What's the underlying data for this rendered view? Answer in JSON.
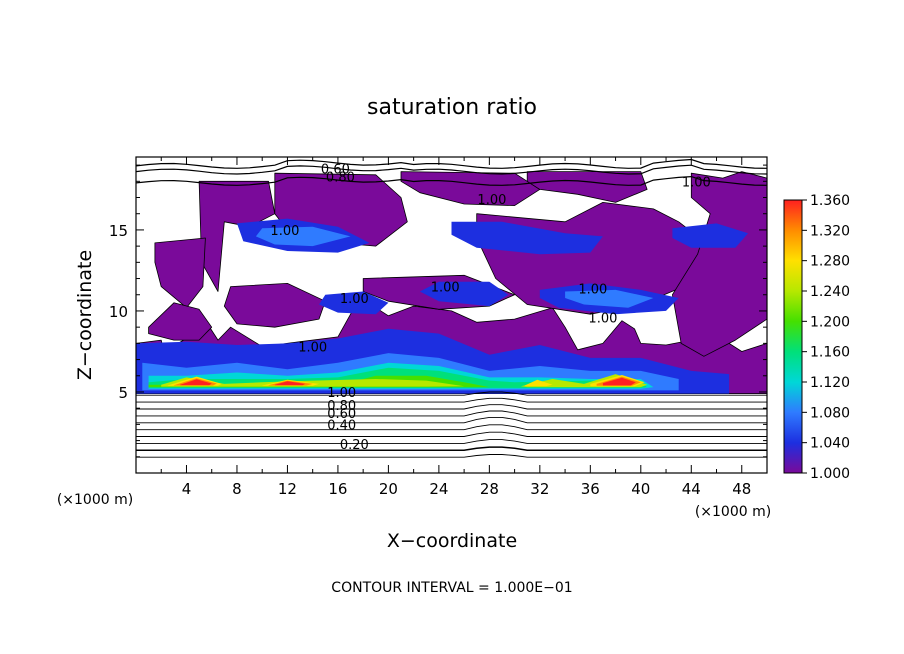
{
  "chart_data": {
    "type": "heatmap",
    "title": "saturation ratio",
    "xlabel": "X−coordinate",
    "ylabel": "Z−coordinate",
    "x_unit_left": "(×1000 m)",
    "x_unit_right": "(×1000 m)",
    "xlim": [
      0,
      50
    ],
    "ylim": [
      0,
      19.5
    ],
    "xticks": [
      4,
      8,
      12,
      16,
      20,
      24,
      28,
      32,
      36,
      40,
      44,
      48
    ],
    "yticks": [
      5,
      10,
      15
    ],
    "footer": "CONTOUR INTERVAL = 1.000E−01",
    "colorbar": {
      "min": 1.0,
      "max": 1.36,
      "ticks": [
        "1.360",
        "1.320",
        "1.280",
        "1.240",
        "1.200",
        "1.160",
        "1.120",
        "1.080",
        "1.040",
        "1.000"
      ],
      "stops": [
        {
          "v": 1.0,
          "color": "#7a0a9a"
        },
        {
          "v": 1.04,
          "color": "#1d2fe0"
        },
        {
          "v": 1.08,
          "color": "#2f7bff"
        },
        {
          "v": 1.12,
          "color": "#00d7d7"
        },
        {
          "v": 1.16,
          "color": "#00e07a"
        },
        {
          "v": 1.2,
          "color": "#45e000"
        },
        {
          "v": 1.24,
          "color": "#b7e800"
        },
        {
          "v": 1.28,
          "color": "#ffe000"
        },
        {
          "v": 1.32,
          "color": "#ff8c00"
        },
        {
          "v": 1.36,
          "color": "#ff2020"
        }
      ]
    },
    "contour_levels_below": [
      0.1,
      0.2,
      0.3,
      0.4,
      0.5,
      0.6,
      0.7,
      0.8,
      0.9,
      1.0
    ],
    "contour_labels": [
      {
        "text": "0.20",
        "x": 17.3,
        "z": 1.8
      },
      {
        "text": "0.40",
        "x": 16.3,
        "z": 3.0
      },
      {
        "text": "0.60",
        "x": 16.3,
        "z": 3.7
      },
      {
        "text": "0.80",
        "x": 16.3,
        "z": 4.2
      },
      {
        "text": "1.00",
        "x": 16.3,
        "z": 5.0
      },
      {
        "text": "0.60",
        "x": 15.8,
        "z": 18.8
      },
      {
        "text": "0.80",
        "x": 16.2,
        "z": 18.3
      },
      {
        "text": "1.00",
        "x": 11.8,
        "z": 15.0
      },
      {
        "text": "1.00",
        "x": 28.2,
        "z": 16.9
      },
      {
        "text": "1.00",
        "x": 24.5,
        "z": 11.5
      },
      {
        "text": "1.00",
        "x": 17.3,
        "z": 10.8
      },
      {
        "text": "1.00",
        "x": 36.2,
        "z": 11.4
      },
      {
        "text": "1.00",
        "x": 37.0,
        "z": 9.6
      },
      {
        "text": "1.00",
        "x": 14.0,
        "z": 7.8
      },
      {
        "text": "1.00",
        "x": 44.4,
        "z": 18.0
      }
    ],
    "regions": [
      {
        "v": 1.0,
        "x": [
          0,
          2,
          2.2,
          4,
          5,
          6.5,
          7.5,
          10,
          13,
          16,
          17.5,
          19,
          20,
          22,
          25,
          27,
          30,
          33,
          34,
          35,
          37,
          38.5,
          39.5,
          40,
          42,
          46,
          48,
          50,
          50,
          48,
          46,
          44,
          42,
          40,
          38,
          36,
          34,
          31,
          28,
          25,
          22,
          19,
          16,
          13,
          10,
          7,
          4,
          1,
          0
        ],
        "z": [
          8,
          8.2,
          7.5,
          8.3,
          10,
          8.2,
          9,
          7.8,
          8.1,
          8.4,
          10.5,
          10.2,
          9.7,
          10.3,
          10,
          9.3,
          9.5,
          10.2,
          9,
          7.6,
          8,
          9.4,
          8.9,
          8,
          7.9,
          8.5,
          7.5,
          8,
          4.9,
          4.9,
          4.9,
          4.9,
          4.9,
          4.9,
          4.9,
          4.9,
          4.9,
          4.9,
          4.9,
          4.9,
          4.9,
          4.9,
          4.9,
          4.9,
          4.9,
          4.9,
          4.9,
          4.9,
          4.9
        ]
      },
      {
        "v": 1.0,
        "x": [
          5,
          10.5,
          11,
          9,
          7,
          6.5,
          5.2
        ],
        "z": [
          18,
          18,
          16,
          15.2,
          15.5,
          11.2,
          13
        ]
      },
      {
        "v": 1.0,
        "x": [
          1.5,
          5.5,
          5.3,
          4,
          2,
          1.5
        ],
        "z": [
          14.2,
          14.5,
          11.5,
          10.2,
          11.5,
          13
        ]
      },
      {
        "v": 1.0,
        "x": [
          11,
          19,
          21,
          21.5,
          19,
          16,
          13,
          11
        ],
        "z": [
          18.5,
          18.4,
          17,
          15.5,
          14,
          14.2,
          14,
          16
        ]
      },
      {
        "v": 1.0,
        "x": [
          21,
          30,
          32,
          30,
          26,
          22.5,
          21
        ],
        "z": [
          18.6,
          18.5,
          17.5,
          16.5,
          16.6,
          17.3,
          18
        ]
      },
      {
        "v": 1.0,
        "x": [
          31,
          40,
          40.5,
          38,
          35,
          32,
          31
        ],
        "z": [
          18.6,
          18.6,
          17.5,
          16.7,
          17.2,
          17.5,
          18
        ]
      },
      {
        "v": 1.0,
        "x": [
          27,
          34,
          37,
          41,
          43,
          45,
          46,
          44,
          40,
          36,
          31,
          28.5,
          27
        ],
        "z": [
          16,
          15.5,
          16.7,
          16.3,
          15.5,
          14.3,
          12.2,
          11.7,
          10.4,
          9.8,
          10.4,
          12,
          14.5
        ]
      },
      {
        "v": 1.0,
        "x": [
          44,
          46.5,
          48,
          50,
          50,
          47.5,
          45,
          43.2,
          42.5,
          44.5,
          45.5,
          44
        ],
        "z": [
          18.5,
          18.2,
          18.6,
          18.2,
          9.5,
          8.2,
          7.2,
          8,
          11,
          13.5,
          16,
          17
        ]
      },
      {
        "v": 1.0,
        "x": [
          7.5,
          12,
          15,
          14.5,
          11,
          8,
          7
        ],
        "z": [
          11.5,
          11.7,
          10.6,
          9.5,
          9,
          9.2,
          10.3
        ]
      },
      {
        "v": 1.0,
        "x": [
          18,
          26,
          30,
          28,
          24,
          20,
          18
        ],
        "z": [
          12,
          12.2,
          11,
          10.3,
          10.1,
          10.6,
          11.2
        ]
      },
      {
        "v": 1.0,
        "x": [
          1,
          3,
          5,
          6,
          5,
          3,
          1
        ],
        "z": [
          9,
          10.5,
          10.1,
          9,
          8.2,
          8.2,
          8.6
        ]
      },
      {
        "v": 1.04,
        "x": [
          0,
          4,
          8,
          12,
          16,
          20,
          24,
          28,
          32,
          36,
          40,
          44,
          47,
          47,
          44,
          40,
          36,
          32,
          28,
          24,
          20,
          16,
          12,
          8,
          4,
          0
        ],
        "z": [
          8,
          8.1,
          7.9,
          8,
          8.3,
          8.9,
          8.6,
          7.3,
          7.9,
          7.1,
          7.1,
          6.3,
          6.1,
          4.9,
          4.9,
          4.9,
          4.9,
          4.9,
          4.9,
          4.9,
          4.9,
          4.9,
          4.9,
          4.9,
          4.9,
          4.9
        ]
      },
      {
        "v": 1.04,
        "x": [
          8,
          12,
          16,
          18.5,
          16,
          12,
          8.5
        ],
        "z": [
          15.4,
          15.7,
          15.2,
          14.2,
          13.6,
          13.7,
          14.3
        ]
      },
      {
        "v": 1.04,
        "x": [
          25,
          29,
          34,
          37,
          36,
          32,
          27,
          25
        ],
        "z": [
          15.5,
          15.5,
          14.8,
          14.6,
          13.6,
          13.5,
          13.9,
          14.7
        ]
      },
      {
        "v": 1.04,
        "x": [
          32,
          36,
          40,
          43,
          42,
          38,
          33.5,
          32
        ],
        "z": [
          11.3,
          11.7,
          11.3,
          10.8,
          10,
          9.8,
          10.2,
          10.8
        ]
      },
      {
        "v": 1.04,
        "x": [
          24,
          28,
          29.5,
          28,
          24,
          22.5
        ],
        "z": [
          11.8,
          11.8,
          11,
          10.3,
          10.6,
          11.2
        ]
      },
      {
        "v": 1.04,
        "x": [
          42.5,
          46,
          48.5,
          47.5,
          44,
          42.5
        ],
        "z": [
          15.1,
          15.4,
          14.8,
          13.9,
          13.9,
          14.5
        ]
      },
      {
        "v": 1.04,
        "x": [
          15,
          18,
          20,
          19,
          16,
          14.5
        ],
        "z": [
          11,
          11.2,
          10.5,
          9.8,
          9.9,
          10.4
        ]
      },
      {
        "v": 1.08,
        "x": [
          0.5,
          4,
          8,
          12,
          16,
          20,
          24,
          28,
          32,
          36,
          40,
          43,
          43,
          40,
          36,
          32,
          28,
          24,
          20,
          16,
          12,
          8,
          4,
          0.5
        ],
        "z": [
          6.8,
          6.5,
          6.8,
          6.4,
          6.8,
          7.4,
          7.1,
          6.3,
          6.6,
          6.3,
          6.3,
          5.8,
          5.1,
          5.1,
          5.1,
          5.1,
          5.1,
          5.1,
          5.1,
          5.1,
          5.1,
          5.1,
          5.1,
          5.1
        ]
      },
      {
        "v": 1.08,
        "x": [
          10,
          14,
          17,
          14,
          11,
          9.5
        ],
        "z": [
          15.1,
          15.2,
          14.6,
          14.0,
          14.1,
          14.6
        ]
      },
      {
        "v": 1.08,
        "x": [
          34,
          38,
          41,
          39,
          35.5,
          34
        ],
        "z": [
          11.2,
          11.3,
          10.8,
          10.2,
          10.4,
          10.8
        ]
      },
      {
        "v": 1.12,
        "x": [
          1,
          4,
          8,
          12,
          16,
          20,
          24,
          28,
          32,
          36,
          40,
          41,
          40,
          36,
          32,
          28,
          24,
          20,
          16,
          12,
          8,
          4,
          1
        ],
        "z": [
          6.0,
          6.0,
          6.2,
          6.0,
          6.2,
          6.8,
          6.6,
          5.9,
          5.9,
          5.8,
          5.8,
          5.3,
          5.2,
          5.2,
          5.2,
          5.2,
          5.2,
          5.2,
          5.2,
          5.2,
          5.2,
          5.2,
          5.2
        ]
      },
      {
        "v": 1.16,
        "x": [
          1,
          4,
          8,
          12,
          16,
          20,
          24,
          28,
          30,
          36,
          40,
          40.5,
          40,
          36,
          30,
          28,
          24,
          20,
          16,
          12,
          8,
          4,
          1
        ],
        "z": [
          5.6,
          5.8,
          5.8,
          5.8,
          5.9,
          6.5,
          6.3,
          5.7,
          5.6,
          5.7,
          5.6,
          5.3,
          5.25,
          5.25,
          5.25,
          5.25,
          5.25,
          5.25,
          5.25,
          5.25,
          5.25,
          5.25,
          5.25
        ]
      },
      {
        "v": 1.2,
        "x": [
          1,
          6,
          9,
          14,
          17,
          19,
          23,
          26,
          28,
          26,
          23,
          19,
          14,
          9,
          5,
          1
        ],
        "z": [
          5.45,
          5.45,
          5.5,
          5.5,
          5.6,
          6.0,
          6.0,
          5.6,
          5.3,
          5.3,
          5.3,
          5.3,
          5.3,
          5.3,
          5.3,
          5.3
        ]
      },
      {
        "v": 1.24,
        "x": [
          2,
          4,
          7,
          10,
          14,
          19,
          23,
          26,
          23,
          19,
          14,
          10,
          7,
          2
        ],
        "z": [
          5.45,
          5.9,
          5.5,
          5.6,
          5.7,
          5.8,
          5.7,
          5.35,
          5.33,
          5.33,
          5.33,
          5.33,
          5.33,
          5.33
        ]
      },
      {
        "v": 1.24,
        "x": [
          30.5,
          33,
          35.5,
          38,
          40.5,
          40,
          36,
          31
        ],
        "z": [
          5.35,
          5.8,
          5.5,
          6.1,
          5.45,
          5.3,
          5.3,
          5.3
        ]
      },
      {
        "v": 1.28,
        "x": [
          2.5,
          4.8,
          6.8,
          6.5,
          2.5
        ],
        "z": [
          5.4,
          5.95,
          5.5,
          5.38,
          5.38
        ]
      },
      {
        "v": 1.28,
        "x": [
          10,
          12,
          14.5,
          14,
          10
        ],
        "z": [
          5.4,
          5.75,
          5.5,
          5.38,
          5.38
        ]
      },
      {
        "v": 1.28,
        "x": [
          30.8,
          31.8,
          33,
          32.5,
          30.8
        ],
        "z": [
          5.4,
          5.75,
          5.45,
          5.36,
          5.36
        ]
      },
      {
        "v": 1.28,
        "x": [
          36,
          38.5,
          40.3,
          39.5,
          36
        ],
        "z": [
          5.5,
          6.05,
          5.6,
          5.35,
          5.35
        ]
      },
      {
        "v": 1.32,
        "x": [
          3.0,
          4.8,
          6.4,
          6.1,
          3.0
        ],
        "z": [
          5.42,
          5.85,
          5.52,
          5.4,
          5.4
        ]
      },
      {
        "v": 1.32,
        "x": [
          10.5,
          12,
          14,
          13.5,
          10.5
        ],
        "z": [
          5.42,
          5.7,
          5.5,
          5.4,
          5.4
        ]
      },
      {
        "v": 1.32,
        "x": [
          36.5,
          38.5,
          40,
          39.3,
          36.5
        ],
        "z": [
          5.5,
          5.95,
          5.6,
          5.38,
          5.38
        ]
      },
      {
        "v": 1.36,
        "x": [
          3.5,
          4.8,
          6.0,
          5.8,
          3.5
        ],
        "z": [
          5.45,
          5.78,
          5.52,
          5.42,
          5.42
        ]
      },
      {
        "v": 1.36,
        "x": [
          11,
          12,
          13.4,
          13.2,
          11
        ],
        "z": [
          5.45,
          5.66,
          5.5,
          5.42,
          5.42
        ]
      },
      {
        "v": 1.36,
        "x": [
          37,
          38.5,
          39.6,
          39.2,
          37
        ],
        "z": [
          5.55,
          5.88,
          5.6,
          5.4,
          5.4
        ]
      }
    ]
  }
}
